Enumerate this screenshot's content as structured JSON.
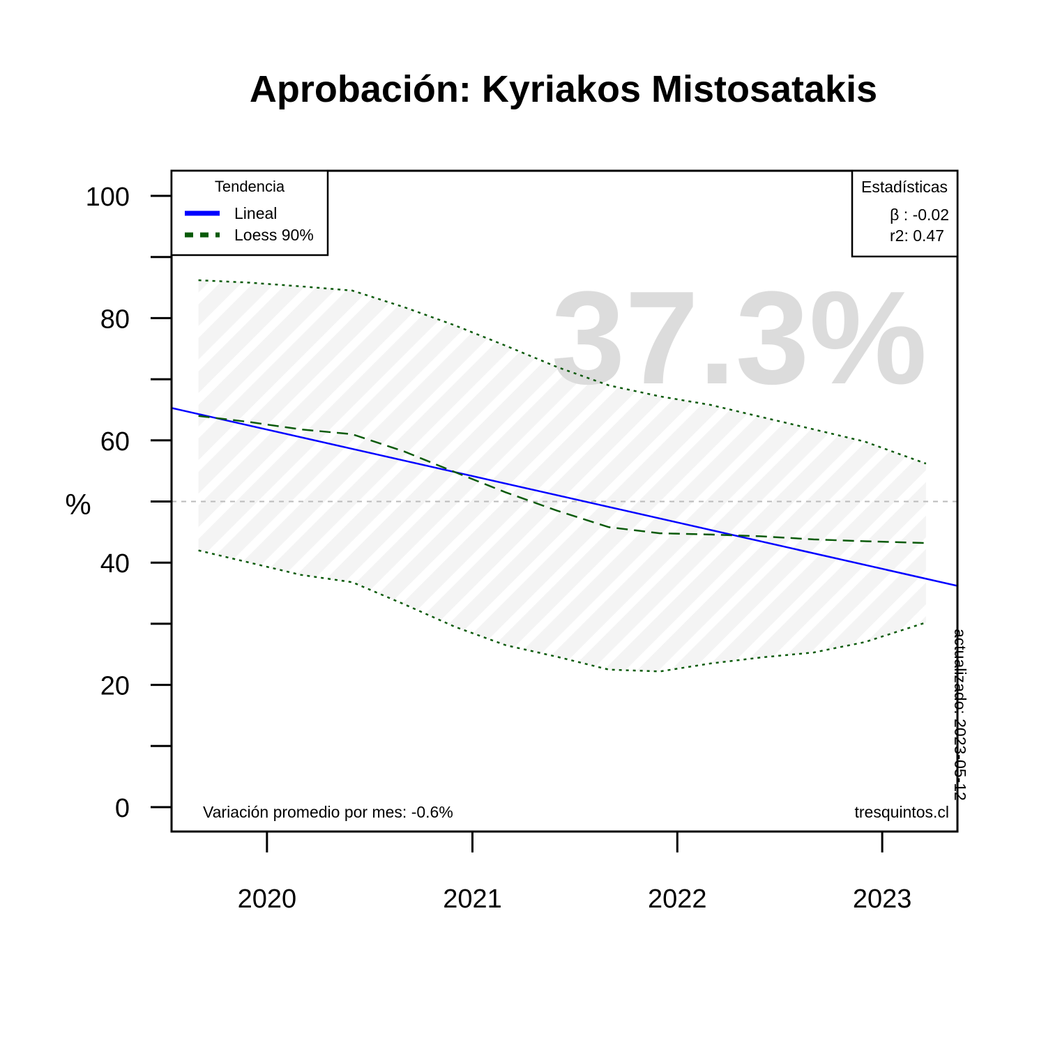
{
  "chart_data": {
    "type": "line",
    "title": "Aprobación: Kyriakos Mistosatakis",
    "ylabel": "%",
    "xlabel": "",
    "ylim": [
      0,
      100
    ],
    "y_ticks": [
      0,
      20,
      40,
      60,
      80,
      100
    ],
    "x_ticks": [
      "2020",
      "2021",
      "2022",
      "2023"
    ],
    "grid": false,
    "reference_line": 50,
    "watermark_value": "37.3%",
    "legend": {
      "title": "Tendencia",
      "placement": "top-left",
      "items": [
        {
          "label": "Lineal",
          "color": "#0000ff",
          "style": "solid"
        },
        {
          "label": "Loess 90%",
          "color": "#0a5a0a",
          "style": "dashed"
        }
      ]
    },
    "stats_box": {
      "title": "Estadísticas",
      "placement": "top-right",
      "beta": "β : -0.02",
      "r2": "r2: 0.47"
    },
    "footer_left": "Variación promedio por mes: -0.6%",
    "footer_right": "tresquintos.cl",
    "updated_label": "actualizado: 2023-05-12",
    "x_range": [
      "2019-07-15",
      "2023-05-15"
    ],
    "series": [
      {
        "name": "Lineal",
        "style": "solid",
        "color": "#0000ff",
        "x": [
          "2019-07-15",
          "2023-05-15"
        ],
        "y": [
          65.3,
          36.2
        ]
      },
      {
        "name": "Loess 90%",
        "style": "dashed",
        "color": "#0a5a0a",
        "x": [
          "2019-09-01",
          "2019-12-01",
          "2020-03-01",
          "2020-06-01",
          "2020-09-01",
          "2020-12-01",
          "2021-03-01",
          "2021-06-01",
          "2021-09-01",
          "2021-12-01",
          "2022-03-01",
          "2022-06-01",
          "2022-09-01",
          "2022-12-01",
          "2023-03-20"
        ],
        "y": [
          64.0,
          63.0,
          61.8,
          61.0,
          58.2,
          54.8,
          51.5,
          48.5,
          45.8,
          44.8,
          44.6,
          44.3,
          43.8,
          43.5,
          43.2
        ]
      },
      {
        "name": "Upper band",
        "style": "dotted",
        "color": "#0a5a0a",
        "x": [
          "2019-09-01",
          "2019-12-01",
          "2020-03-01",
          "2020-06-01",
          "2020-09-01",
          "2020-12-01",
          "2021-03-01",
          "2021-06-01",
          "2021-09-01",
          "2021-12-01",
          "2022-03-01",
          "2022-06-01",
          "2022-09-01",
          "2022-12-01",
          "2023-03-20"
        ],
        "y": [
          86.2,
          85.8,
          85.2,
          84.5,
          81.8,
          78.8,
          75.5,
          72.0,
          69.0,
          67.2,
          65.8,
          63.8,
          61.8,
          59.8,
          56.2
        ]
      },
      {
        "name": "Lower band",
        "style": "dotted",
        "color": "#0a5a0a",
        "x": [
          "2019-09-01",
          "2019-12-01",
          "2020-03-01",
          "2020-06-01",
          "2020-09-01",
          "2020-12-01",
          "2021-03-01",
          "2021-06-01",
          "2021-09-01",
          "2021-12-01",
          "2022-03-01",
          "2022-06-01",
          "2022-09-01",
          "2022-12-01",
          "2023-03-20"
        ],
        "y": [
          42.0,
          40.0,
          38.0,
          36.8,
          33.2,
          29.5,
          26.5,
          24.6,
          22.5,
          22.2,
          23.5,
          24.5,
          25.3,
          27.0,
          30.2
        ]
      }
    ]
  }
}
